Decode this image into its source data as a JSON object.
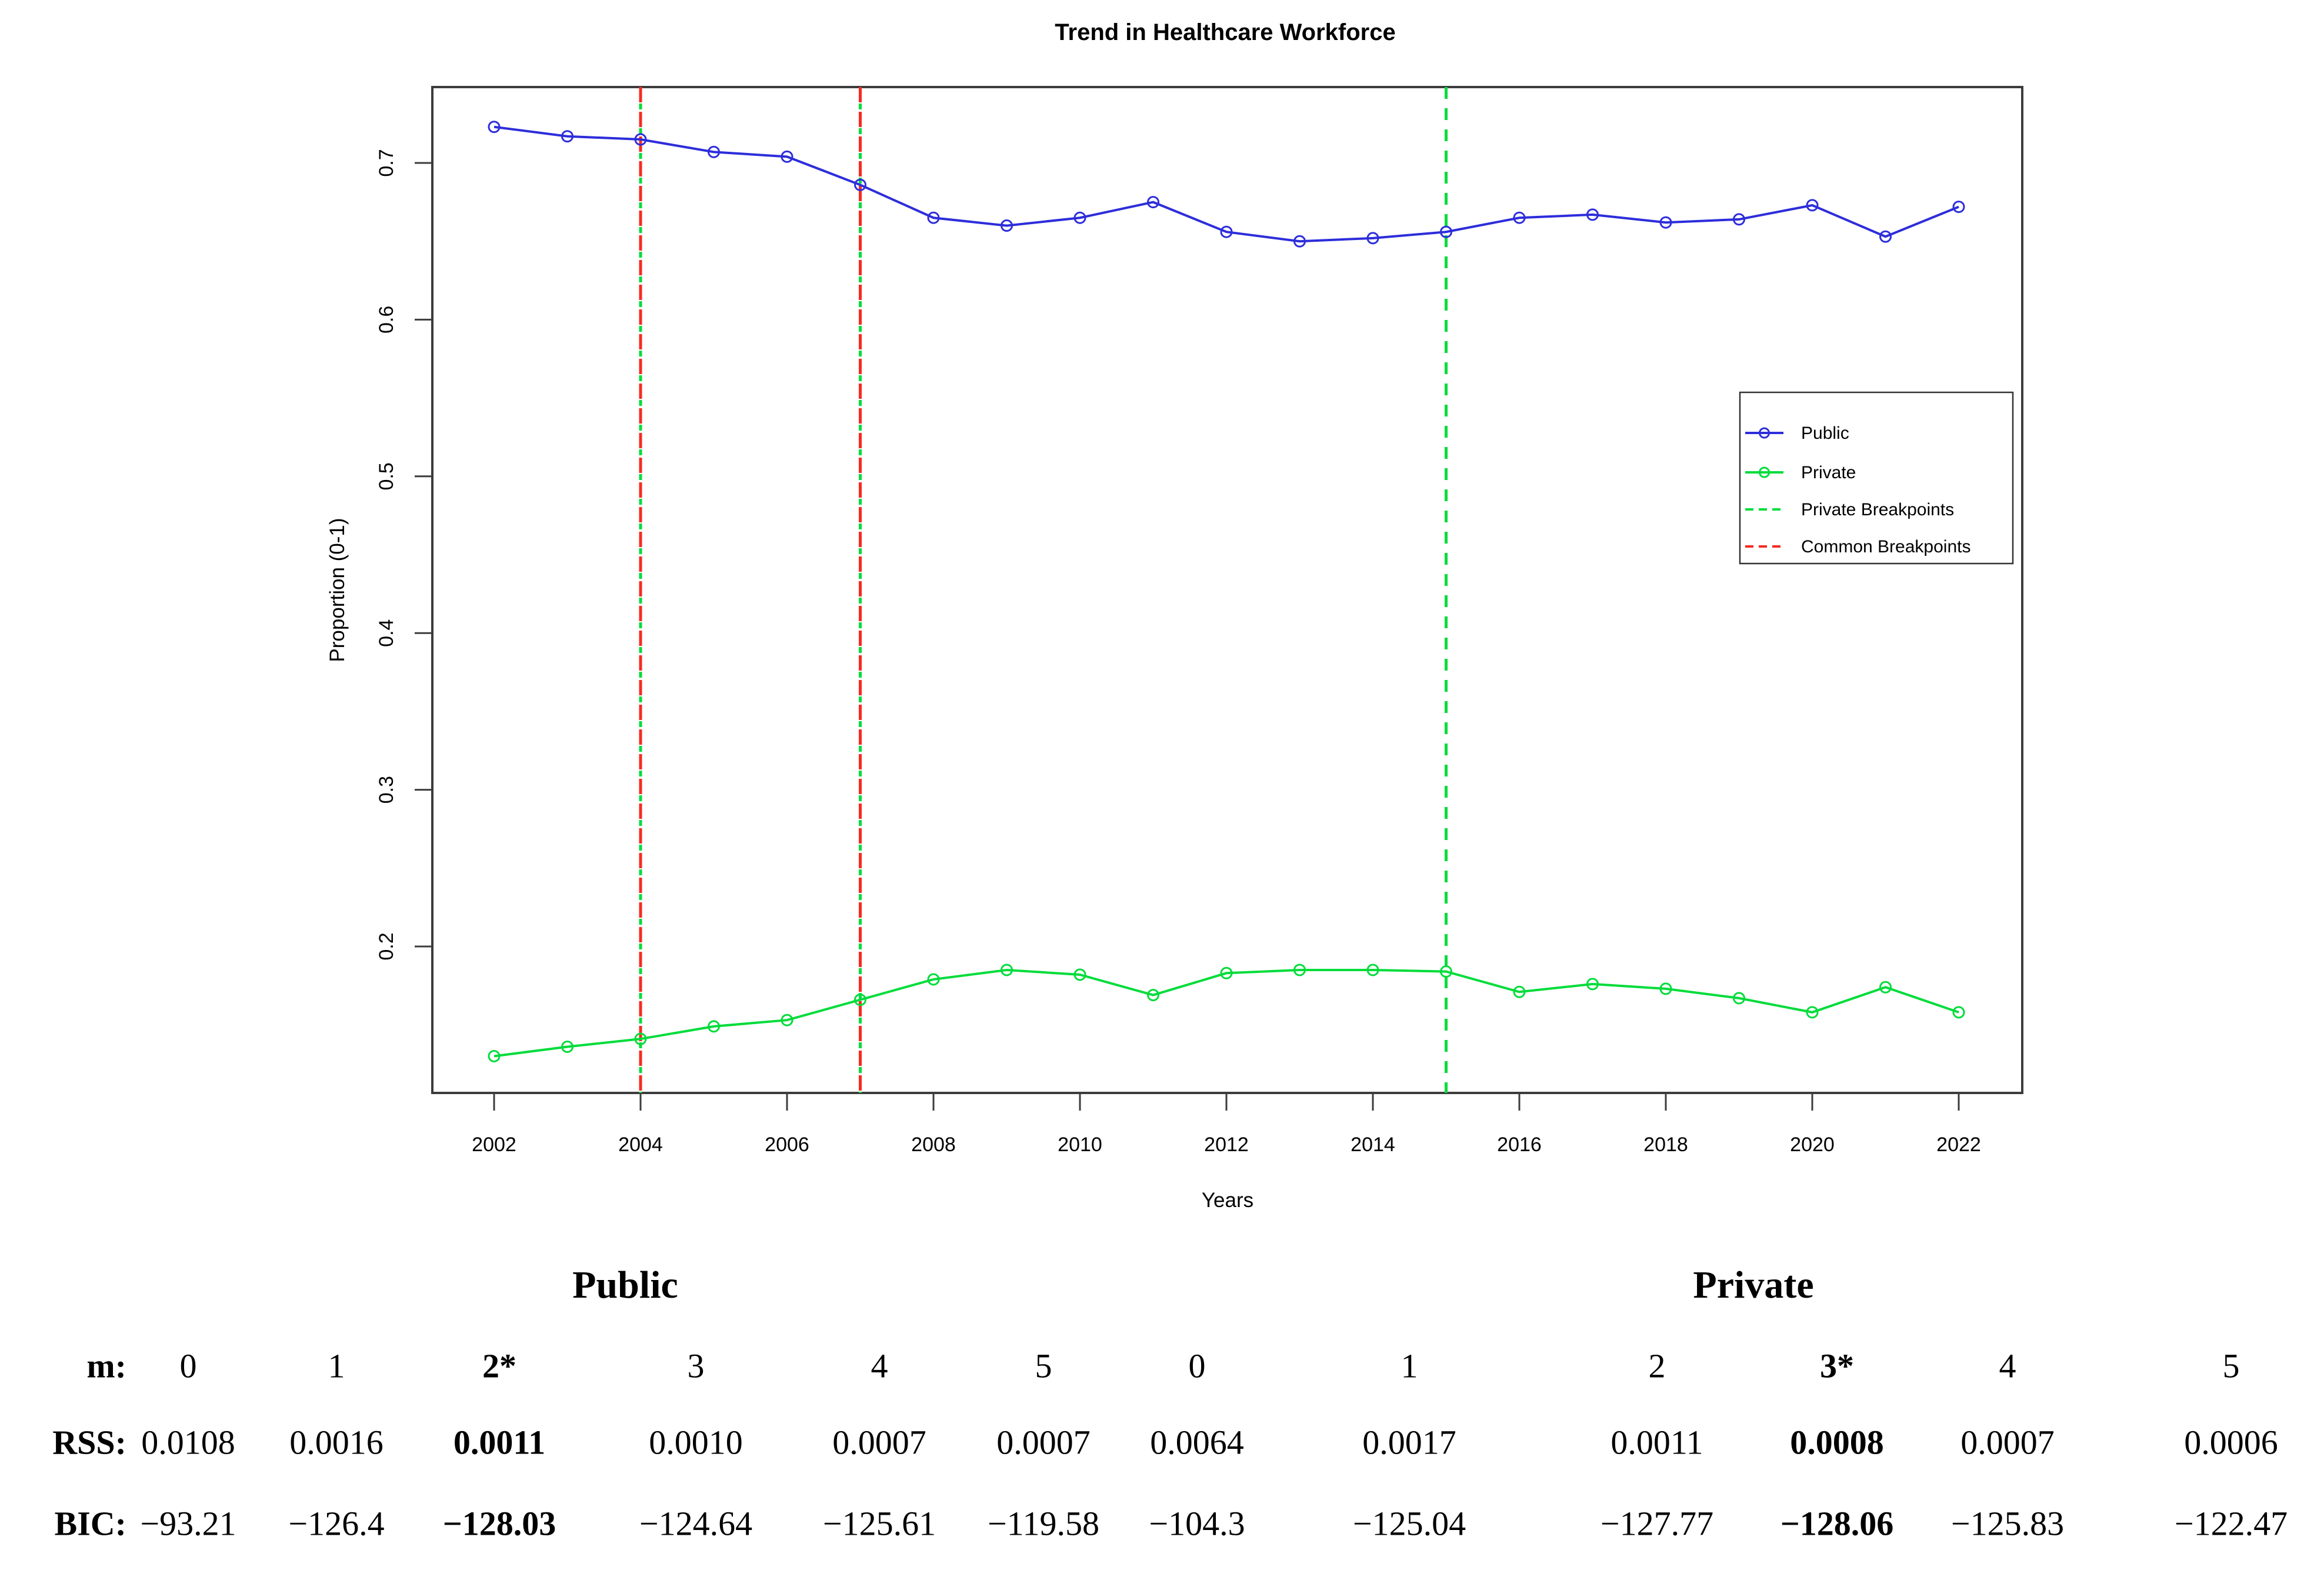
{
  "title": "Trend in Healthcare Workforce",
  "chart_data": {
    "type": "line",
    "x": [
      2002,
      2003,
      2004,
      2005,
      2006,
      2007,
      2008,
      2009,
      2010,
      2011,
      2012,
      2013,
      2014,
      2015,
      2016,
      2017,
      2018,
      2019,
      2020,
      2021,
      2022
    ],
    "xlabel": "Years",
    "ylabel": "Proportion (0-1)",
    "ylim": [
      0.106,
      0.748
    ],
    "xticks": [
      2002,
      2004,
      2006,
      2008,
      2010,
      2012,
      2014,
      2016,
      2018,
      2020,
      2022
    ],
    "yticks": [
      "0.2",
      "0.3",
      "0.4",
      "0.5",
      "0.6",
      "0.7"
    ],
    "grid": false,
    "legend_position": "right-inside",
    "series": [
      {
        "name": "Public",
        "color": "#2D2DDB",
        "marker": "open-circle",
        "values": [
          0.723,
          0.717,
          0.715,
          0.707,
          0.704,
          0.686,
          0.665,
          0.66,
          0.665,
          0.675,
          0.656,
          0.65,
          0.652,
          0.656,
          0.665,
          0.667,
          0.662,
          0.664,
          0.673,
          0.653,
          0.672
        ]
      },
      {
        "name": "Private",
        "color": "#00DC3A",
        "marker": "open-circle",
        "values": [
          0.13,
          0.136,
          0.141,
          0.149,
          0.153,
          0.166,
          0.179,
          0.185,
          0.182,
          0.169,
          0.183,
          0.185,
          0.185,
          0.184,
          0.171,
          0.176,
          0.173,
          0.167,
          0.158,
          0.174,
          0.158
        ]
      }
    ],
    "breakpoints": {
      "private": {
        "label": "Private Breakpoints",
        "color": "#00DC3A",
        "style": "dashed",
        "years": [
          2004,
          2007,
          2015
        ]
      },
      "common": {
        "label": "Common Breakpoints",
        "color": "#F62B20",
        "style": "dashed",
        "years": [
          2004,
          2007
        ]
      }
    }
  },
  "legend": {
    "items": [
      {
        "label": "Public",
        "swatch": "line-marker",
        "color": "#2D2DDB"
      },
      {
        "label": "Private",
        "swatch": "line-marker",
        "color": "#00DC3A"
      },
      {
        "label": "Private Breakpoints",
        "swatch": "dashed-line",
        "color": "#00DC3A"
      },
      {
        "label": "Common Breakpoints",
        "swatch": "dashed-line",
        "color": "#F62B20"
      }
    ]
  },
  "table": {
    "group_headers": [
      "Public",
      "Private"
    ],
    "row_labels": [
      "m:",
      "RSS:",
      "BIC:"
    ],
    "columns": [
      {
        "m": "0",
        "rss": "0.0108",
        "bic": "−93.21",
        "bold": false
      },
      {
        "m": "1",
        "rss": "0.0016",
        "bic": "−126.4",
        "bold": false
      },
      {
        "m": "2*",
        "rss": "0.0011",
        "bic": "−128.03",
        "bold": true
      },
      {
        "m": "3",
        "rss": "0.0010",
        "bic": "−124.64",
        "bold": false
      },
      {
        "m": "4",
        "rss": "0.0007",
        "bic": "−125.61",
        "bold": false
      },
      {
        "m": "5",
        "rss": "0.0007",
        "bic": "−119.58",
        "bold": false
      },
      {
        "m": "0",
        "rss": "0.0064",
        "bic": "−104.3",
        "bold": false
      },
      {
        "m": "1",
        "rss": "0.0017",
        "bic": "−125.04",
        "bold": false
      },
      {
        "m": "2",
        "rss": "0.0011",
        "bic": "−127.77",
        "bold": false
      },
      {
        "m": "3*",
        "rss": "0.0008",
        "bic": "−128.06",
        "bold": true
      },
      {
        "m": "4",
        "rss": "0.0007",
        "bic": "−125.83",
        "bold": false
      },
      {
        "m": "5",
        "rss": "0.0006",
        "bic": "−122.47",
        "bold": false
      }
    ]
  }
}
